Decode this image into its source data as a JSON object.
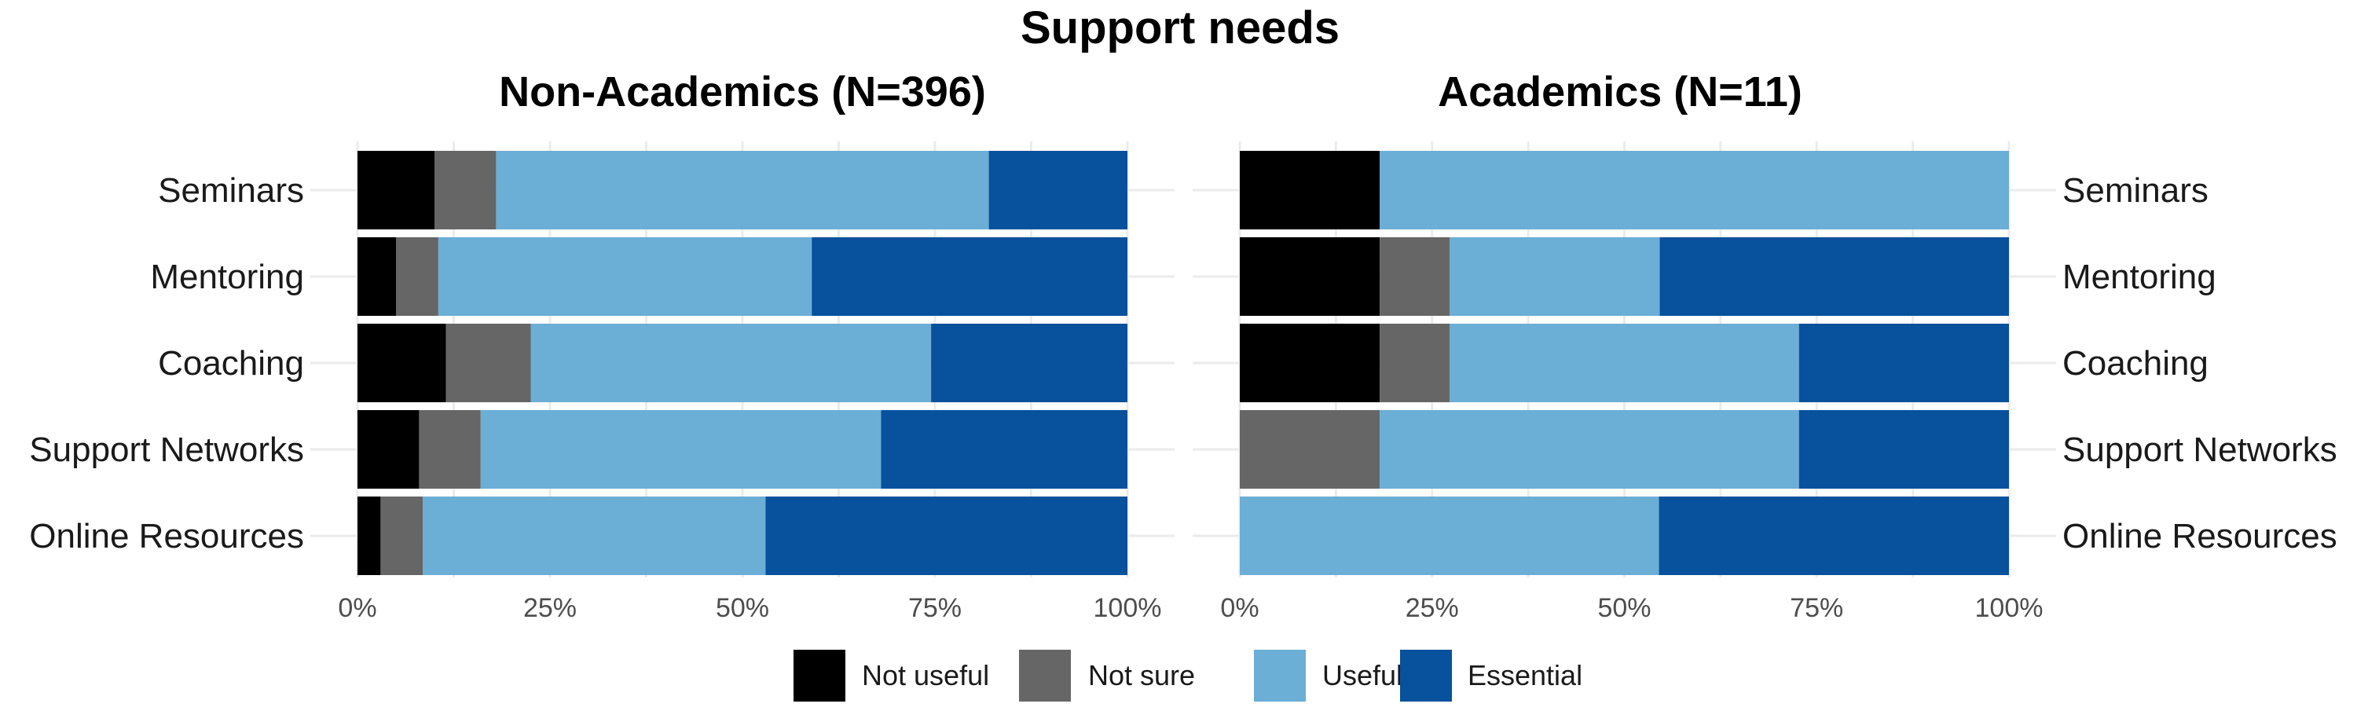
{
  "chart_data": {
    "type": "bar",
    "orientation": "horizontal",
    "stacked": "percent",
    "title": "Support needs",
    "categories": [
      "Seminars",
      "Mentoring",
      "Coaching",
      "Support Networks",
      "Online Resources"
    ],
    "levels": [
      "Not useful",
      "Not sure",
      "Useful",
      "Essential"
    ],
    "colors": {
      "Not useful": "#000000",
      "Not sure": "#666666",
      "Useful": "#6BAED6",
      "Essential": "#08519C"
    },
    "x_ticks": [
      "0%",
      "25%",
      "50%",
      "75%",
      "100%"
    ],
    "xlim": [
      0,
      100
    ],
    "legend_position": "bottom",
    "grid": true,
    "panels": [
      {
        "id": "non-academics",
        "title": "Non-Academics (N=396)",
        "values": {
          "Seminars": [
            10,
            8,
            64,
            18
          ],
          "Mentoring": [
            5,
            5.5,
            48.5,
            41
          ],
          "Coaching": [
            11.5,
            11,
            52,
            25.5
          ],
          "Support Networks": [
            8,
            8,
            52,
            32
          ],
          "Online Resources": [
            3,
            5.5,
            44.5,
            47
          ]
        }
      },
      {
        "id": "academics",
        "title": "Academics (N=11)",
        "values": {
          "Seminars": [
            18.2,
            0,
            81.8,
            0
          ],
          "Mentoring": [
            18.2,
            9.1,
            27.3,
            45.4
          ],
          "Coaching": [
            18.2,
            9.1,
            45.4,
            27.3
          ],
          "Support Networks": [
            0,
            18.2,
            54.5,
            27.3
          ],
          "Online Resources": [
            0,
            0,
            54.5,
            45.5
          ]
        }
      }
    ]
  }
}
